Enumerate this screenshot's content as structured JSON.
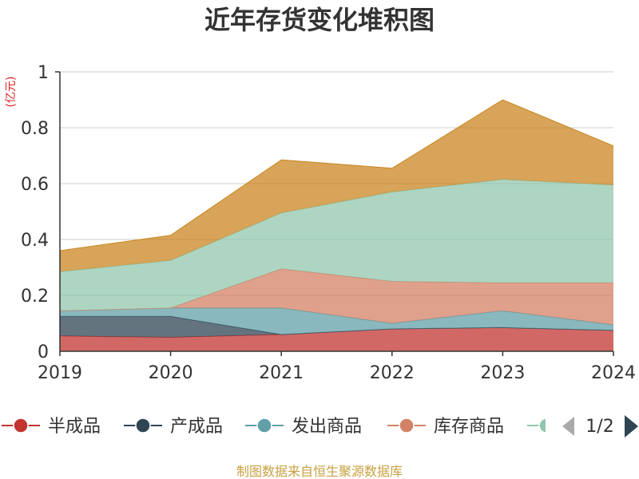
{
  "title": "近年存货变化堆积图",
  "source": "制图数据来自恒生聚源数据库",
  "chart_data": {
    "type": "area",
    "stacked": true,
    "title": "近年存货变化堆积图",
    "ylabel": "(亿元)",
    "ylim": [
      0,
      1
    ],
    "yticks": [
      "0",
      "0.2",
      "0.4",
      "0.6",
      "0.8",
      "1"
    ],
    "grid": true,
    "legend_position": "bottom",
    "x": [
      "2019",
      "2020",
      "2021",
      "2022",
      "2023",
      "2024"
    ],
    "series": [
      {
        "name": "半成品",
        "color": "#c23531",
        "values": [
          0.055,
          0.05,
          0.06,
          0.08,
          0.085,
          0.075
        ]
      },
      {
        "name": "产成品",
        "color": "#2f4554",
        "values": [
          0.07,
          0.075,
          0.0,
          0.0,
          0.0,
          0.0
        ]
      },
      {
        "name": "发出商品",
        "color": "#61a0a8",
        "values": [
          0.02,
          0.03,
          0.095,
          0.02,
          0.06,
          0.02
        ]
      },
      {
        "name": "库存商品",
        "color": "#d48265",
        "values": [
          0.0,
          0.0,
          0.14,
          0.15,
          0.1,
          0.15
        ]
      },
      {
        "name": "",
        "color": "#91c7ae",
        "values": [
          0.14,
          0.17,
          0.2,
          0.32,
          0.37,
          0.35
        ]
      },
      {
        "name": "",
        "color": "#ca8622",
        "values": [
          0.075,
          0.09,
          0.19,
          0.085,
          0.285,
          0.14
        ]
      }
    ]
  },
  "legend": {
    "items": [
      {
        "name": "半成品",
        "color": "#c23531"
      },
      {
        "name": "产成品",
        "color": "#2f4554"
      },
      {
        "name": "发出商品",
        "color": "#61a0a8"
      },
      {
        "name": "库存商品",
        "color": "#d48265"
      }
    ],
    "partial_color": "#91c7ae",
    "page": "1/2",
    "prev_color": "#aaaaaa",
    "next_color": "#2f4554"
  }
}
